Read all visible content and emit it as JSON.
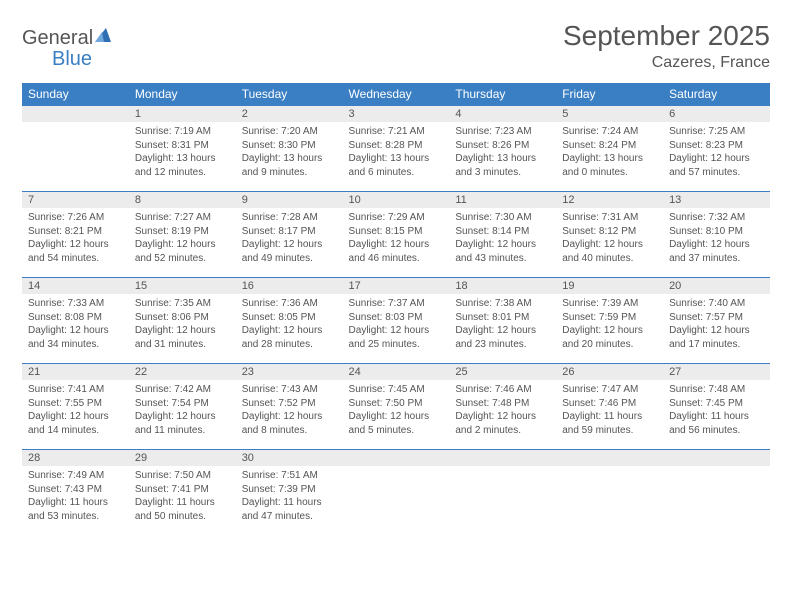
{
  "logo": {
    "general": "General",
    "blue": "Blue"
  },
  "title": "September 2025",
  "location": "Cazeres, France",
  "weekdays": [
    "Sunday",
    "Monday",
    "Tuesday",
    "Wednesday",
    "Thursday",
    "Friday",
    "Saturday"
  ],
  "colors": {
    "header_bg": "#3a7fc4",
    "header_text": "#ffffff",
    "daynum_bg": "#ececec",
    "text": "#555555",
    "rule": "#3a7fc4",
    "page_bg": "#ffffff"
  },
  "first_weekday_index": 1,
  "days": [
    {
      "n": 1,
      "sunrise": "7:19 AM",
      "sunset": "8:31 PM",
      "daylight": "13 hours and 12 minutes."
    },
    {
      "n": 2,
      "sunrise": "7:20 AM",
      "sunset": "8:30 PM",
      "daylight": "13 hours and 9 minutes."
    },
    {
      "n": 3,
      "sunrise": "7:21 AM",
      "sunset": "8:28 PM",
      "daylight": "13 hours and 6 minutes."
    },
    {
      "n": 4,
      "sunrise": "7:23 AM",
      "sunset": "8:26 PM",
      "daylight": "13 hours and 3 minutes."
    },
    {
      "n": 5,
      "sunrise": "7:24 AM",
      "sunset": "8:24 PM",
      "daylight": "13 hours and 0 minutes."
    },
    {
      "n": 6,
      "sunrise": "7:25 AM",
      "sunset": "8:23 PM",
      "daylight": "12 hours and 57 minutes."
    },
    {
      "n": 7,
      "sunrise": "7:26 AM",
      "sunset": "8:21 PM",
      "daylight": "12 hours and 54 minutes."
    },
    {
      "n": 8,
      "sunrise": "7:27 AM",
      "sunset": "8:19 PM",
      "daylight": "12 hours and 52 minutes."
    },
    {
      "n": 9,
      "sunrise": "7:28 AM",
      "sunset": "8:17 PM",
      "daylight": "12 hours and 49 minutes."
    },
    {
      "n": 10,
      "sunrise": "7:29 AM",
      "sunset": "8:15 PM",
      "daylight": "12 hours and 46 minutes."
    },
    {
      "n": 11,
      "sunrise": "7:30 AM",
      "sunset": "8:14 PM",
      "daylight": "12 hours and 43 minutes."
    },
    {
      "n": 12,
      "sunrise": "7:31 AM",
      "sunset": "8:12 PM",
      "daylight": "12 hours and 40 minutes."
    },
    {
      "n": 13,
      "sunrise": "7:32 AM",
      "sunset": "8:10 PM",
      "daylight": "12 hours and 37 minutes."
    },
    {
      "n": 14,
      "sunrise": "7:33 AM",
      "sunset": "8:08 PM",
      "daylight": "12 hours and 34 minutes."
    },
    {
      "n": 15,
      "sunrise": "7:35 AM",
      "sunset": "8:06 PM",
      "daylight": "12 hours and 31 minutes."
    },
    {
      "n": 16,
      "sunrise": "7:36 AM",
      "sunset": "8:05 PM",
      "daylight": "12 hours and 28 minutes."
    },
    {
      "n": 17,
      "sunrise": "7:37 AM",
      "sunset": "8:03 PM",
      "daylight": "12 hours and 25 minutes."
    },
    {
      "n": 18,
      "sunrise": "7:38 AM",
      "sunset": "8:01 PM",
      "daylight": "12 hours and 23 minutes."
    },
    {
      "n": 19,
      "sunrise": "7:39 AM",
      "sunset": "7:59 PM",
      "daylight": "12 hours and 20 minutes."
    },
    {
      "n": 20,
      "sunrise": "7:40 AM",
      "sunset": "7:57 PM",
      "daylight": "12 hours and 17 minutes."
    },
    {
      "n": 21,
      "sunrise": "7:41 AM",
      "sunset": "7:55 PM",
      "daylight": "12 hours and 14 minutes."
    },
    {
      "n": 22,
      "sunrise": "7:42 AM",
      "sunset": "7:54 PM",
      "daylight": "12 hours and 11 minutes."
    },
    {
      "n": 23,
      "sunrise": "7:43 AM",
      "sunset": "7:52 PM",
      "daylight": "12 hours and 8 minutes."
    },
    {
      "n": 24,
      "sunrise": "7:45 AM",
      "sunset": "7:50 PM",
      "daylight": "12 hours and 5 minutes."
    },
    {
      "n": 25,
      "sunrise": "7:46 AM",
      "sunset": "7:48 PM",
      "daylight": "12 hours and 2 minutes."
    },
    {
      "n": 26,
      "sunrise": "7:47 AM",
      "sunset": "7:46 PM",
      "daylight": "11 hours and 59 minutes."
    },
    {
      "n": 27,
      "sunrise": "7:48 AM",
      "sunset": "7:45 PM",
      "daylight": "11 hours and 56 minutes."
    },
    {
      "n": 28,
      "sunrise": "7:49 AM",
      "sunset": "7:43 PM",
      "daylight": "11 hours and 53 minutes."
    },
    {
      "n": 29,
      "sunrise": "7:50 AM",
      "sunset": "7:41 PM",
      "daylight": "11 hours and 50 minutes."
    },
    {
      "n": 30,
      "sunrise": "7:51 AM",
      "sunset": "7:39 PM",
      "daylight": "11 hours and 47 minutes."
    }
  ],
  "labels": {
    "sunrise": "Sunrise:",
    "sunset": "Sunset:",
    "daylight": "Daylight:"
  }
}
